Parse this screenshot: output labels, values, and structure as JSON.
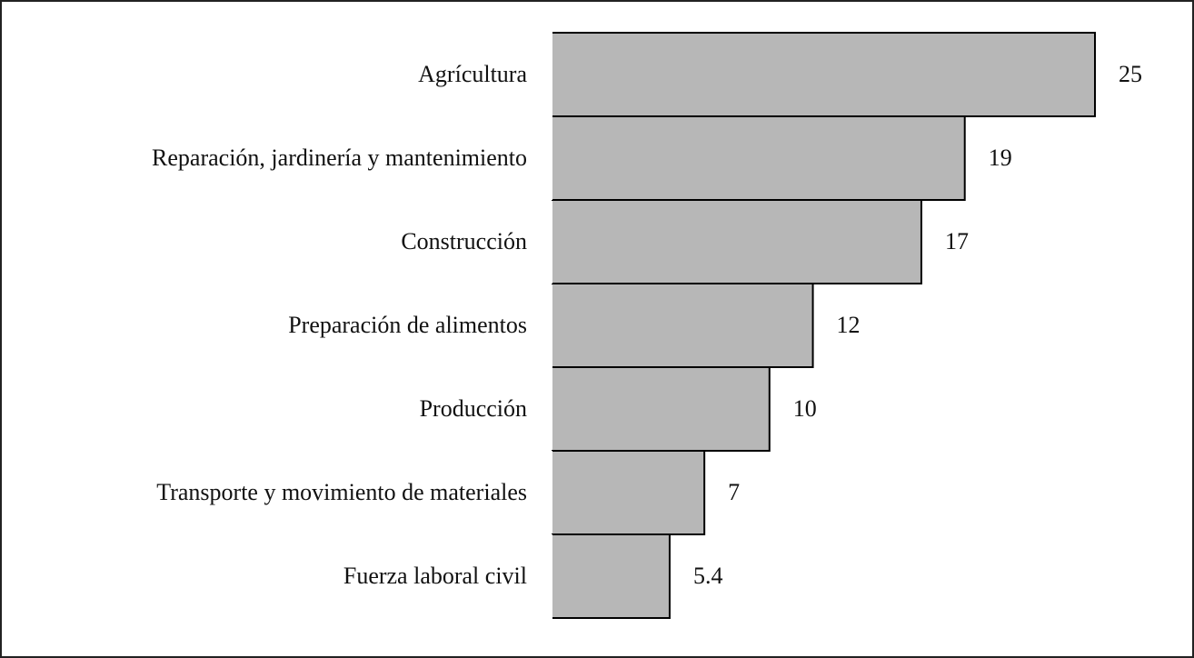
{
  "chart_data": {
    "type": "barh",
    "categories": [
      "Agrícultura",
      "Reparación, jardinería y mantenimiento",
      "Construcción",
      "Preparación de alimentos",
      "Producción",
      "Transporte y movimiento de materiales",
      "Fuerza laboral civil"
    ],
    "values": [
      25,
      19,
      17,
      12,
      10,
      7,
      5.4
    ],
    "color": "#b7b7b7",
    "xlim": [
      0,
      25
    ]
  }
}
